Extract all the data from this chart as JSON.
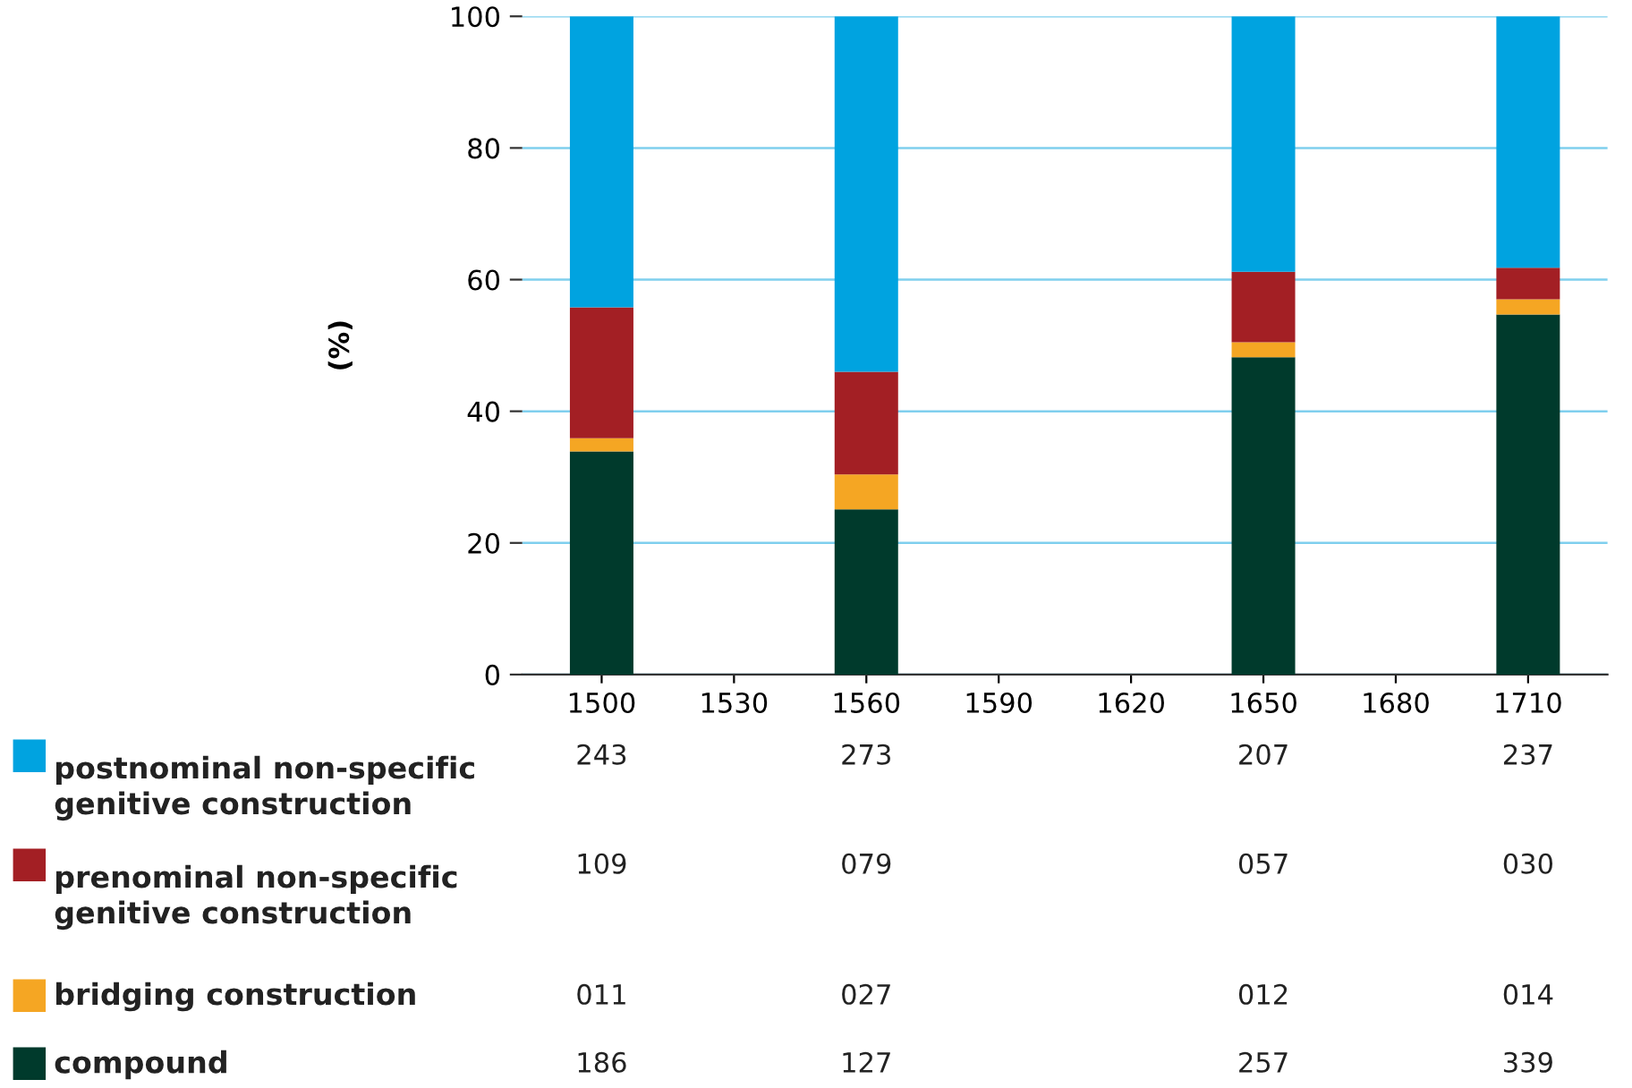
{
  "chart_data": {
    "type": "bar",
    "stacked": true,
    "ylabel": "(%)",
    "categories": [
      "1500",
      "1530",
      "1560",
      "1590",
      "1620",
      "1650",
      "1680",
      "1710"
    ],
    "ylim": [
      0,
      100
    ],
    "yticks": [
      0,
      20,
      40,
      60,
      80,
      100
    ],
    "grid": "y",
    "legend": "bottom",
    "series": [
      {
        "name": "compound",
        "color": "#003a2c",
        "values": [
          33.9,
          null,
          25.1,
          null,
          null,
          48.2,
          null,
          54.7
        ]
      },
      {
        "name": "bridging construction",
        "color": "#f5a623",
        "values": [
          2.0,
          null,
          5.3,
          null,
          null,
          2.3,
          null,
          2.3
        ]
      },
      {
        "name": "prenominal non-specific\ngenitive construction",
        "color": "#a31f24",
        "values": [
          19.9,
          null,
          15.6,
          null,
          null,
          10.7,
          null,
          4.8
        ]
      },
      {
        "name": "postnominal non-specific\ngenitive construction",
        "color": "#00a3e0",
        "values": [
          44.2,
          null,
          54.0,
          null,
          null,
          38.8,
          null,
          38.2
        ]
      }
    ],
    "annotations": [
      "186",
      "127",
      "257",
      "339",
      "011",
      "027",
      "012",
      "014",
      "109",
      "079",
      "057",
      "030",
      "243",
      "273",
      "207",
      "237"
    ]
  }
}
